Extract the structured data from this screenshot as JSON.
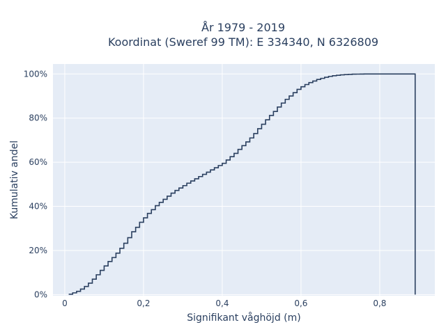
{
  "chart_data": {
    "type": "line",
    "line_shape": "step",
    "title_lines": [
      "År 1979 - 2019",
      "Koordinat (Sweref 99 TM): E 334340, N 6326809"
    ],
    "xlabel": "Signifikant våghöjd (m)",
    "ylabel": "Kumulativ andel",
    "xlim": [
      -0.03,
      0.94
    ],
    "ylim": [
      -0.005,
      1.045
    ],
    "xticks": [
      0,
      0.2,
      0.4,
      0.6,
      0.8
    ],
    "xtick_labels": [
      "0",
      "0,2",
      "0,4",
      "0,6",
      "0,8"
    ],
    "yticks": [
      0,
      0.2,
      0.4,
      0.6,
      0.8,
      1.0
    ],
    "ytick_labels": [
      "0%",
      "20%",
      "40%",
      "60%",
      "80%",
      "100%"
    ],
    "grid": true,
    "colors": {
      "background": "#e5ecf6",
      "grid": "#ffffff",
      "line": "#2a3f5f",
      "text": "#2a3f5f"
    },
    "series": [
      {
        "x": [
          0.01,
          0.02,
          0.03,
          0.04,
          0.05,
          0.06,
          0.07,
          0.08,
          0.09,
          0.1,
          0.11,
          0.12,
          0.13,
          0.14,
          0.15,
          0.16,
          0.17,
          0.18,
          0.19,
          0.2,
          0.21,
          0.22,
          0.23,
          0.24,
          0.25,
          0.26,
          0.27,
          0.28,
          0.29,
          0.3,
          0.31,
          0.32,
          0.33,
          0.34,
          0.35,
          0.36,
          0.37,
          0.38,
          0.39,
          0.4,
          0.41,
          0.42,
          0.43,
          0.44,
          0.45,
          0.46,
          0.47,
          0.48,
          0.49,
          0.5,
          0.51,
          0.52,
          0.53,
          0.54,
          0.55,
          0.56,
          0.57,
          0.58,
          0.59,
          0.6,
          0.61,
          0.62,
          0.63,
          0.64,
          0.65,
          0.66,
          0.67,
          0.68,
          0.69,
          0.7,
          0.71,
          0.72,
          0.73,
          0.74,
          0.75,
          0.76,
          0.77,
          0.78,
          0.79,
          0.8,
          0.81,
          0.82,
          0.83,
          0.84,
          0.85,
          0.86,
          0.87,
          0.88,
          0.89
        ],
        "y": [
          0.002,
          0.008,
          0.015,
          0.025,
          0.037,
          0.052,
          0.07,
          0.09,
          0.11,
          0.13,
          0.15,
          0.168,
          0.188,
          0.21,
          0.233,
          0.258,
          0.285,
          0.305,
          0.328,
          0.348,
          0.368,
          0.385,
          0.403,
          0.418,
          0.432,
          0.446,
          0.46,
          0.472,
          0.483,
          0.494,
          0.505,
          0.515,
          0.525,
          0.535,
          0.545,
          0.555,
          0.565,
          0.575,
          0.585,
          0.595,
          0.61,
          0.625,
          0.64,
          0.658,
          0.675,
          0.692,
          0.71,
          0.73,
          0.752,
          0.772,
          0.792,
          0.812,
          0.83,
          0.85,
          0.868,
          0.885,
          0.9,
          0.915,
          0.93,
          0.942,
          0.952,
          0.961,
          0.968,
          0.975,
          0.98,
          0.985,
          0.989,
          0.992,
          0.994,
          0.996,
          0.997,
          0.998,
          0.999,
          0.9993,
          0.9996,
          0.9998,
          0.9999,
          1.0,
          1.0,
          1.0,
          1.0,
          1.0,
          1.0,
          1.0,
          1.0,
          1.0,
          1.0,
          1.0,
          1.0
        ]
      }
    ]
  }
}
